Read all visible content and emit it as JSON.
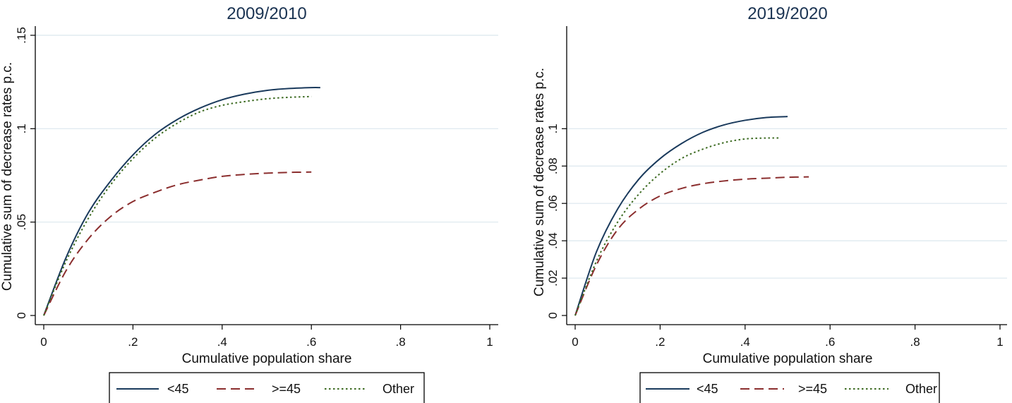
{
  "colors": {
    "under45": "#1a3a5c",
    "over45": "#8b2e2e",
    "other": "#3d6b22",
    "grid": "#dbe7ee",
    "title": "#1a3352"
  },
  "chart_data": [
    {
      "type": "line",
      "title": "2009/2010",
      "xlabel": "Cumulative population share",
      "ylabel": "Cumulative sum of decrease rates p.c.",
      "xlim": [
        0,
        1
      ],
      "ylim": [
        0,
        0.15
      ],
      "x_ticks": [
        "0",
        ".2",
        ".4",
        ".6",
        ".8",
        "1"
      ],
      "y_ticks": [
        "0",
        ".05",
        ".1",
        ".15"
      ],
      "y_tick_values": [
        0,
        0.05,
        0.1,
        0.15
      ],
      "grid": true,
      "legend": "bottom",
      "series": [
        {
          "name": "<45",
          "style": "solid",
          "x": [
            0,
            0.05,
            0.1,
            0.15,
            0.2,
            0.25,
            0.3,
            0.35,
            0.4,
            0.45,
            0.5,
            0.55,
            0.6,
            0.62
          ],
          "y": [
            0,
            0.031,
            0.055,
            0.072,
            0.086,
            0.097,
            0.105,
            0.111,
            0.1155,
            0.1185,
            0.1205,
            0.1215,
            0.122,
            0.122
          ]
        },
        {
          "name": ">=45",
          "style": "dashed",
          "x": [
            0,
            0.05,
            0.1,
            0.15,
            0.2,
            0.25,
            0.3,
            0.35,
            0.4,
            0.45,
            0.5,
            0.55,
            0.6
          ],
          "y": [
            0,
            0.024,
            0.041,
            0.053,
            0.061,
            0.066,
            0.07,
            0.0725,
            0.0745,
            0.0755,
            0.0762,
            0.0766,
            0.0768
          ]
        },
        {
          "name": "Other",
          "style": "dotted",
          "x": [
            0,
            0.05,
            0.1,
            0.15,
            0.2,
            0.25,
            0.3,
            0.35,
            0.4,
            0.45,
            0.5,
            0.55,
            0.6
          ],
          "y": [
            0,
            0.029,
            0.052,
            0.07,
            0.084,
            0.095,
            0.103,
            0.109,
            0.1125,
            0.1145,
            0.116,
            0.1168,
            0.1172
          ]
        }
      ]
    },
    {
      "type": "line",
      "title": "2019/2020",
      "xlabel": "Cumulative population share",
      "ylabel": "Cumulative sum of decrease rates p.c.",
      "xlim": [
        0,
        1
      ],
      "ylim": [
        0,
        0.15
      ],
      "x_ticks": [
        "0",
        ".2",
        ".4",
        ".6",
        ".8",
        "1"
      ],
      "y_ticks": [
        "0",
        ".02",
        ".04",
        ".06",
        ".08",
        ".1"
      ],
      "y_tick_values": [
        0,
        0.02,
        0.04,
        0.06,
        0.08,
        0.1
      ],
      "grid": true,
      "legend": "bottom",
      "series": [
        {
          "name": "<45",
          "style": "solid",
          "x": [
            0,
            0.05,
            0.1,
            0.15,
            0.2,
            0.25,
            0.3,
            0.35,
            0.4,
            0.45,
            0.5
          ],
          "y": [
            0,
            0.034,
            0.057,
            0.073,
            0.084,
            0.092,
            0.098,
            0.102,
            0.1045,
            0.106,
            0.1065
          ]
        },
        {
          "name": ">=45",
          "style": "dashed",
          "x": [
            0,
            0.05,
            0.1,
            0.15,
            0.2,
            0.25,
            0.3,
            0.35,
            0.4,
            0.45,
            0.5,
            0.55
          ],
          "y": [
            0,
            0.027,
            0.046,
            0.057,
            0.064,
            0.068,
            0.0705,
            0.072,
            0.073,
            0.0735,
            0.074,
            0.0742
          ]
        },
        {
          "name": "Other",
          "style": "dotted",
          "x": [
            0,
            0.05,
            0.1,
            0.15,
            0.2,
            0.25,
            0.3,
            0.35,
            0.4,
            0.45,
            0.48
          ],
          "y": [
            0,
            0.029,
            0.05,
            0.065,
            0.076,
            0.084,
            0.089,
            0.0925,
            0.0945,
            0.095,
            0.095
          ]
        }
      ]
    }
  ]
}
